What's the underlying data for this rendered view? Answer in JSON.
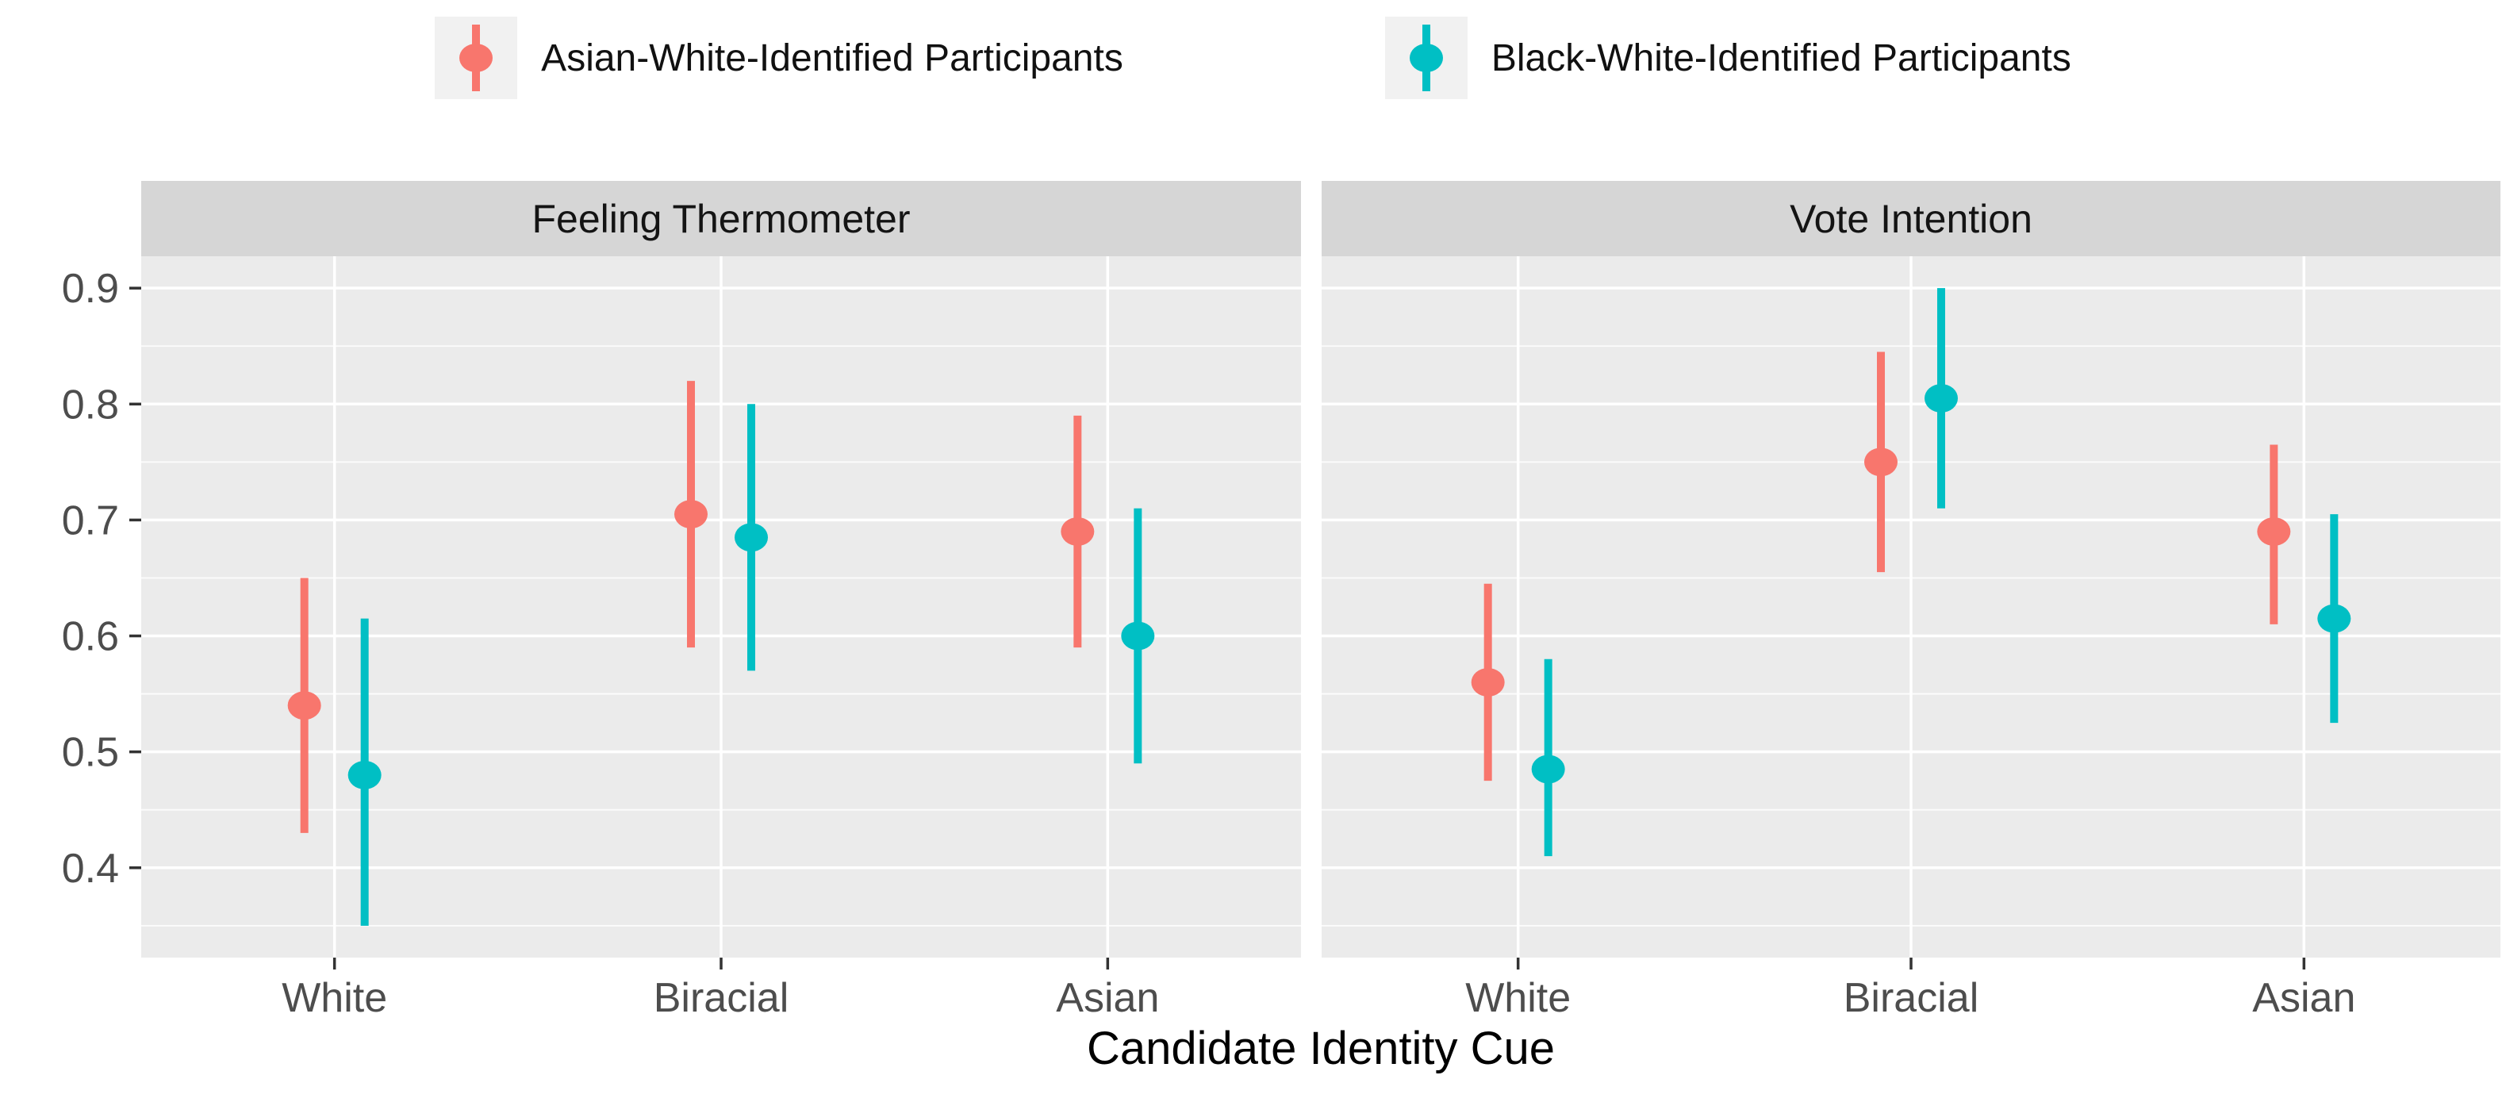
{
  "chart_data": {
    "type": "pointrange",
    "facet_titles": [
      "Feeling Thermometer",
      "Vote Intention"
    ],
    "categories": [
      "White",
      "Biracial",
      "Asian"
    ],
    "xlabel": "Candidate Identity Cue",
    "ylabel": "",
    "y_tick_labels": [
      "0.9",
      "0.8",
      "0.7",
      "0.6",
      "0.5",
      "0.4"
    ],
    "y_ticks": [
      0.9,
      0.8,
      0.7,
      0.6,
      0.5,
      0.4
    ],
    "y_minor_ticks": [
      0.85,
      0.75,
      0.65,
      0.55,
      0.45,
      0.35
    ],
    "ylim": [
      0.3225,
      0.9275
    ],
    "grid": true,
    "legend_position": "top",
    "series": [
      {
        "name": "Asian-White-Identified Participants",
        "color": "#F8766D",
        "facets": [
          {
            "facet": "Feeling Thermometer",
            "est": [
              0.54,
              0.705,
              0.69
            ],
            "lower": [
              0.43,
              0.59,
              0.59
            ],
            "upper": [
              0.65,
              0.82,
              0.79
            ]
          },
          {
            "facet": "Vote Intention",
            "est": [
              0.56,
              0.75,
              0.69
            ],
            "lower": [
              0.475,
              0.655,
              0.61
            ],
            "upper": [
              0.645,
              0.845,
              0.765
            ]
          }
        ]
      },
      {
        "name": "Black-White-Identified Participants",
        "color": "#00BFC4",
        "facets": [
          {
            "facet": "Feeling Thermometer",
            "est": [
              0.48,
              0.685,
              0.6
            ],
            "lower": [
              0.35,
              0.57,
              0.49
            ],
            "upper": [
              0.615,
              0.8,
              0.71
            ]
          },
          {
            "facet": "Vote Intention",
            "est": [
              0.485,
              0.805,
              0.615
            ],
            "lower": [
              0.41,
              0.71,
              0.525
            ],
            "upper": [
              0.58,
              0.9,
              0.705
            ]
          }
        ]
      }
    ],
    "style": {
      "panel_background": "#EBEBEB",
      "strip_background": "#D6D6D6",
      "grid_major_color": "#FFFFFF",
      "grid_minor_color": "#FFFFFF",
      "axis_text_color": "#4D4D4D",
      "tick_mark_color": "#333333"
    }
  }
}
